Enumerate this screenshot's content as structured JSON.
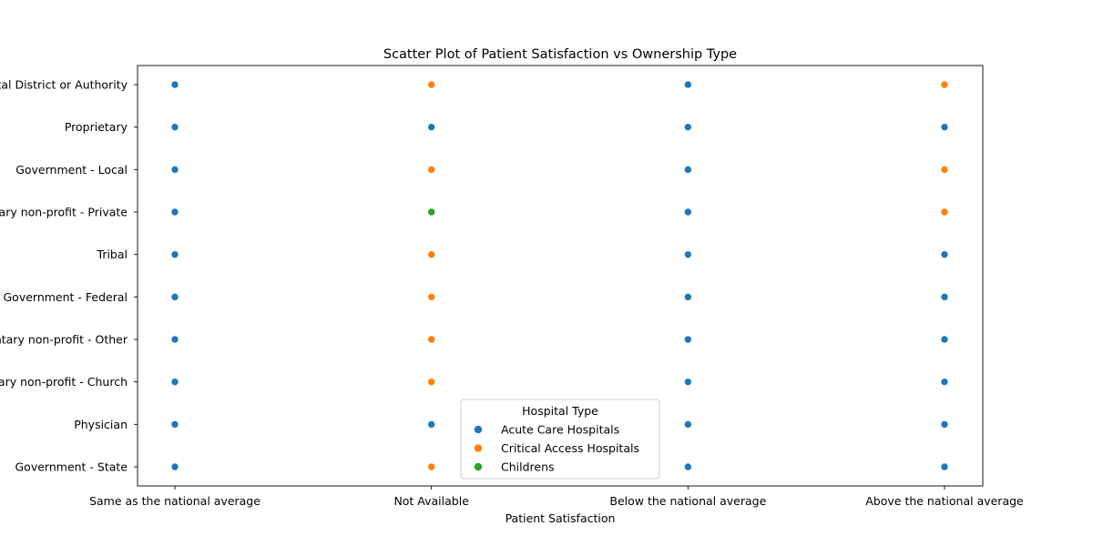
{
  "chart_data": {
    "type": "scatter",
    "title": "Scatter Plot of Patient Satisfaction vs Ownership Type",
    "xlabel": "Patient Satisfaction",
    "ylabel": "",
    "x_categories": [
      "Same as the national average",
      "Not Available",
      "Below the national average",
      "Above the national average"
    ],
    "y_categories": [
      "Hospital District or Authority",
      "Proprietary",
      "Government - Local",
      "Voluntary non-profit - Private",
      "Tribal",
      "Government - Federal",
      "Voluntary non-profit - Other",
      "Voluntary non-profit - Church",
      "Physician",
      "Government - State"
    ],
    "legend": {
      "title": "Hospital Type",
      "placement": "bottom-center",
      "entries": [
        {
          "name": "Acute Care Hospitals",
          "color": "#1f77b4"
        },
        {
          "name": "Critical Access Hospitals",
          "color": "#ff7f0e"
        },
        {
          "name": "Childrens",
          "color": "#2ca02c"
        }
      ]
    },
    "grid": false,
    "series": [
      {
        "name": "Acute Care Hospitals",
        "color": "#1f77b4",
        "points": [
          {
            "x": "Same as the national average",
            "y": "Hospital District or Authority"
          },
          {
            "x": "Same as the national average",
            "y": "Proprietary"
          },
          {
            "x": "Same as the national average",
            "y": "Government - Local"
          },
          {
            "x": "Same as the national average",
            "y": "Voluntary non-profit - Private"
          },
          {
            "x": "Same as the national average",
            "y": "Tribal"
          },
          {
            "x": "Same as the national average",
            "y": "Government - Federal"
          },
          {
            "x": "Same as the national average",
            "y": "Voluntary non-profit - Other"
          },
          {
            "x": "Same as the national average",
            "y": "Voluntary non-profit - Church"
          },
          {
            "x": "Same as the national average",
            "y": "Physician"
          },
          {
            "x": "Same as the national average",
            "y": "Government - State"
          },
          {
            "x": "Not Available",
            "y": "Proprietary"
          },
          {
            "x": "Not Available",
            "y": "Physician"
          },
          {
            "x": "Below the national average",
            "y": "Hospital District or Authority"
          },
          {
            "x": "Below the national average",
            "y": "Proprietary"
          },
          {
            "x": "Below the national average",
            "y": "Government - Local"
          },
          {
            "x": "Below the national average",
            "y": "Voluntary non-profit - Private"
          },
          {
            "x": "Below the national average",
            "y": "Tribal"
          },
          {
            "x": "Below the national average",
            "y": "Government - Federal"
          },
          {
            "x": "Below the national average",
            "y": "Voluntary non-profit - Other"
          },
          {
            "x": "Below the national average",
            "y": "Voluntary non-profit - Church"
          },
          {
            "x": "Below the national average",
            "y": "Physician"
          },
          {
            "x": "Below the national average",
            "y": "Government - State"
          },
          {
            "x": "Above the national average",
            "y": "Proprietary"
          },
          {
            "x": "Above the national average",
            "y": "Tribal"
          },
          {
            "x": "Above the national average",
            "y": "Government - Federal"
          },
          {
            "x": "Above the national average",
            "y": "Voluntary non-profit - Other"
          },
          {
            "x": "Above the national average",
            "y": "Voluntary non-profit - Church"
          },
          {
            "x": "Above the national average",
            "y": "Physician"
          },
          {
            "x": "Above the national average",
            "y": "Government - State"
          }
        ]
      },
      {
        "name": "Critical Access Hospitals",
        "color": "#ff7f0e",
        "points": [
          {
            "x": "Not Available",
            "y": "Hospital District or Authority"
          },
          {
            "x": "Not Available",
            "y": "Government - Local"
          },
          {
            "x": "Not Available",
            "y": "Tribal"
          },
          {
            "x": "Not Available",
            "y": "Government - Federal"
          },
          {
            "x": "Not Available",
            "y": "Voluntary non-profit - Other"
          },
          {
            "x": "Not Available",
            "y": "Voluntary non-profit - Church"
          },
          {
            "x": "Not Available",
            "y": "Government - State"
          },
          {
            "x": "Above the national average",
            "y": "Hospital District or Authority"
          },
          {
            "x": "Above the national average",
            "y": "Government - Local"
          },
          {
            "x": "Above the national average",
            "y": "Voluntary non-profit - Private"
          }
        ]
      },
      {
        "name": "Childrens",
        "color": "#2ca02c",
        "points": [
          {
            "x": "Not Available",
            "y": "Voluntary non-profit - Private"
          }
        ]
      }
    ]
  }
}
